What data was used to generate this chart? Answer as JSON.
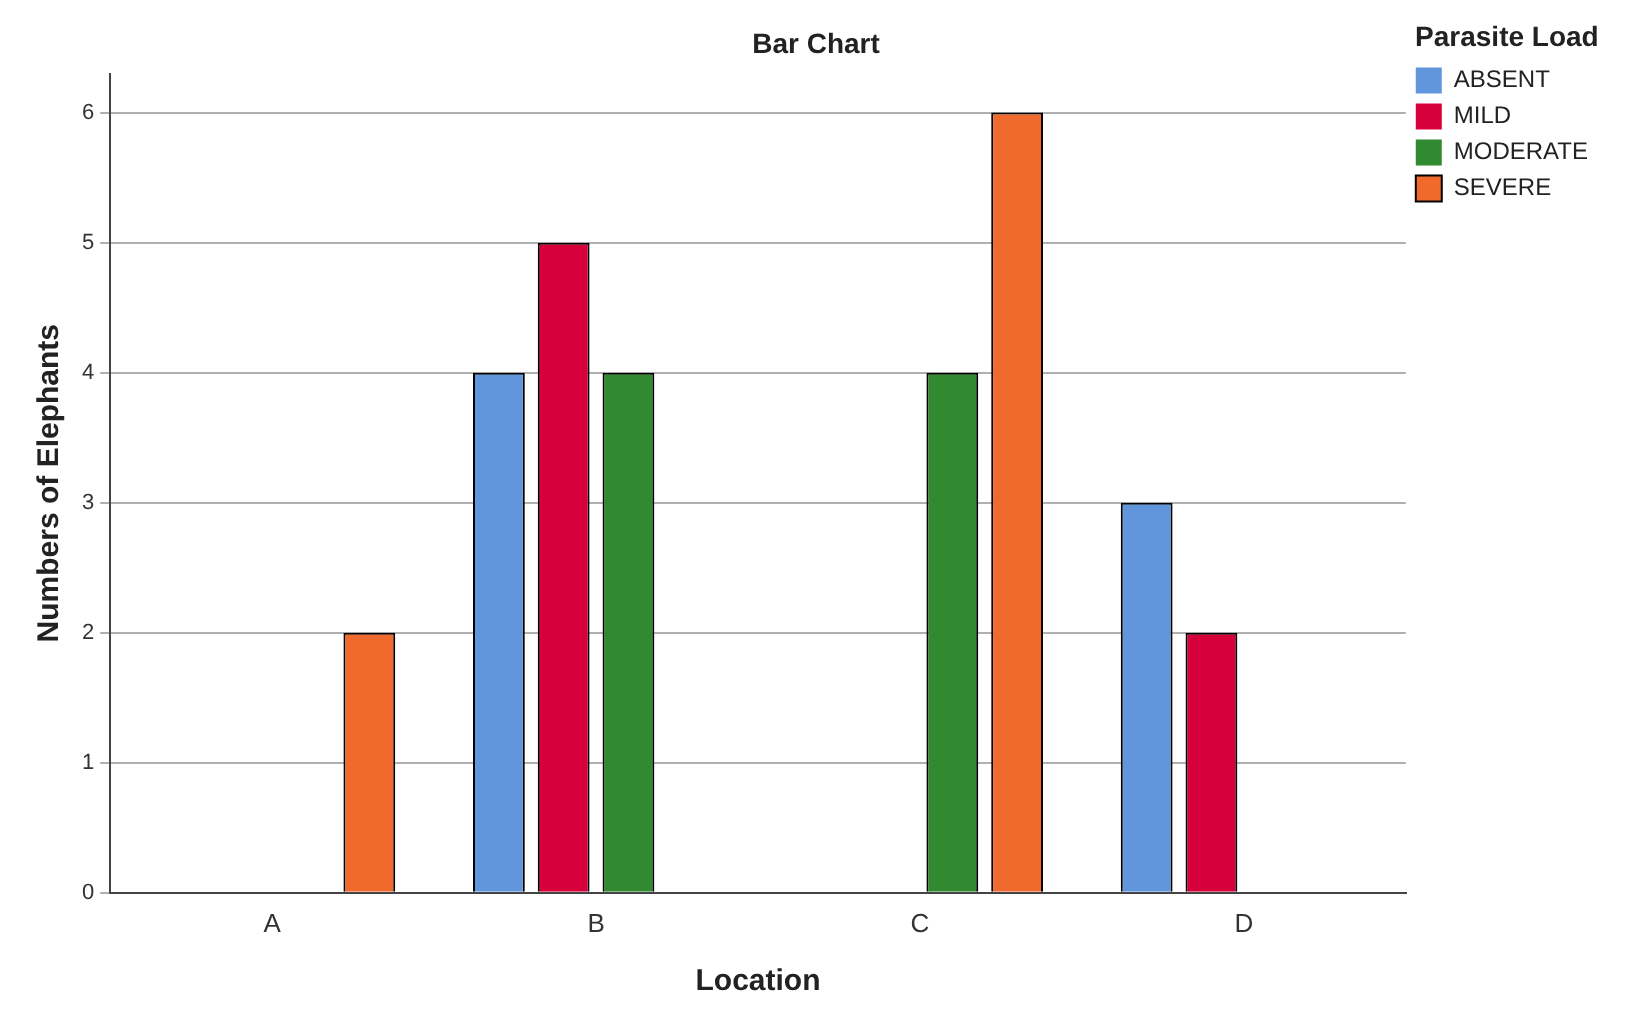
{
  "chart_data": {
    "type": "bar",
    "title": "Bar Chart",
    "xlabel": "Location",
    "ylabel": "Numbers of Elephants",
    "legend_title": "Parasite Load",
    "categories": [
      "A",
      "B",
      "C",
      "D"
    ],
    "series": [
      {
        "name": "ABSENT",
        "color": "#6196dc",
        "values": [
          0,
          4,
          0,
          3
        ]
      },
      {
        "name": "MILD",
        "color": "#d7003a",
        "values": [
          0,
          5,
          0,
          2
        ]
      },
      {
        "name": "MODERATE",
        "color": "#318a30",
        "values": [
          0,
          4,
          4,
          0
        ]
      },
      {
        "name": "SEVERE",
        "color": "#ef6a2c",
        "values": [
          2,
          0,
          6,
          0
        ]
      }
    ],
    "ylim": [
      0,
      6.3
    ],
    "yticks": [
      0,
      1,
      2,
      3,
      4,
      5,
      6
    ],
    "grid": "y",
    "legend": "right"
  }
}
